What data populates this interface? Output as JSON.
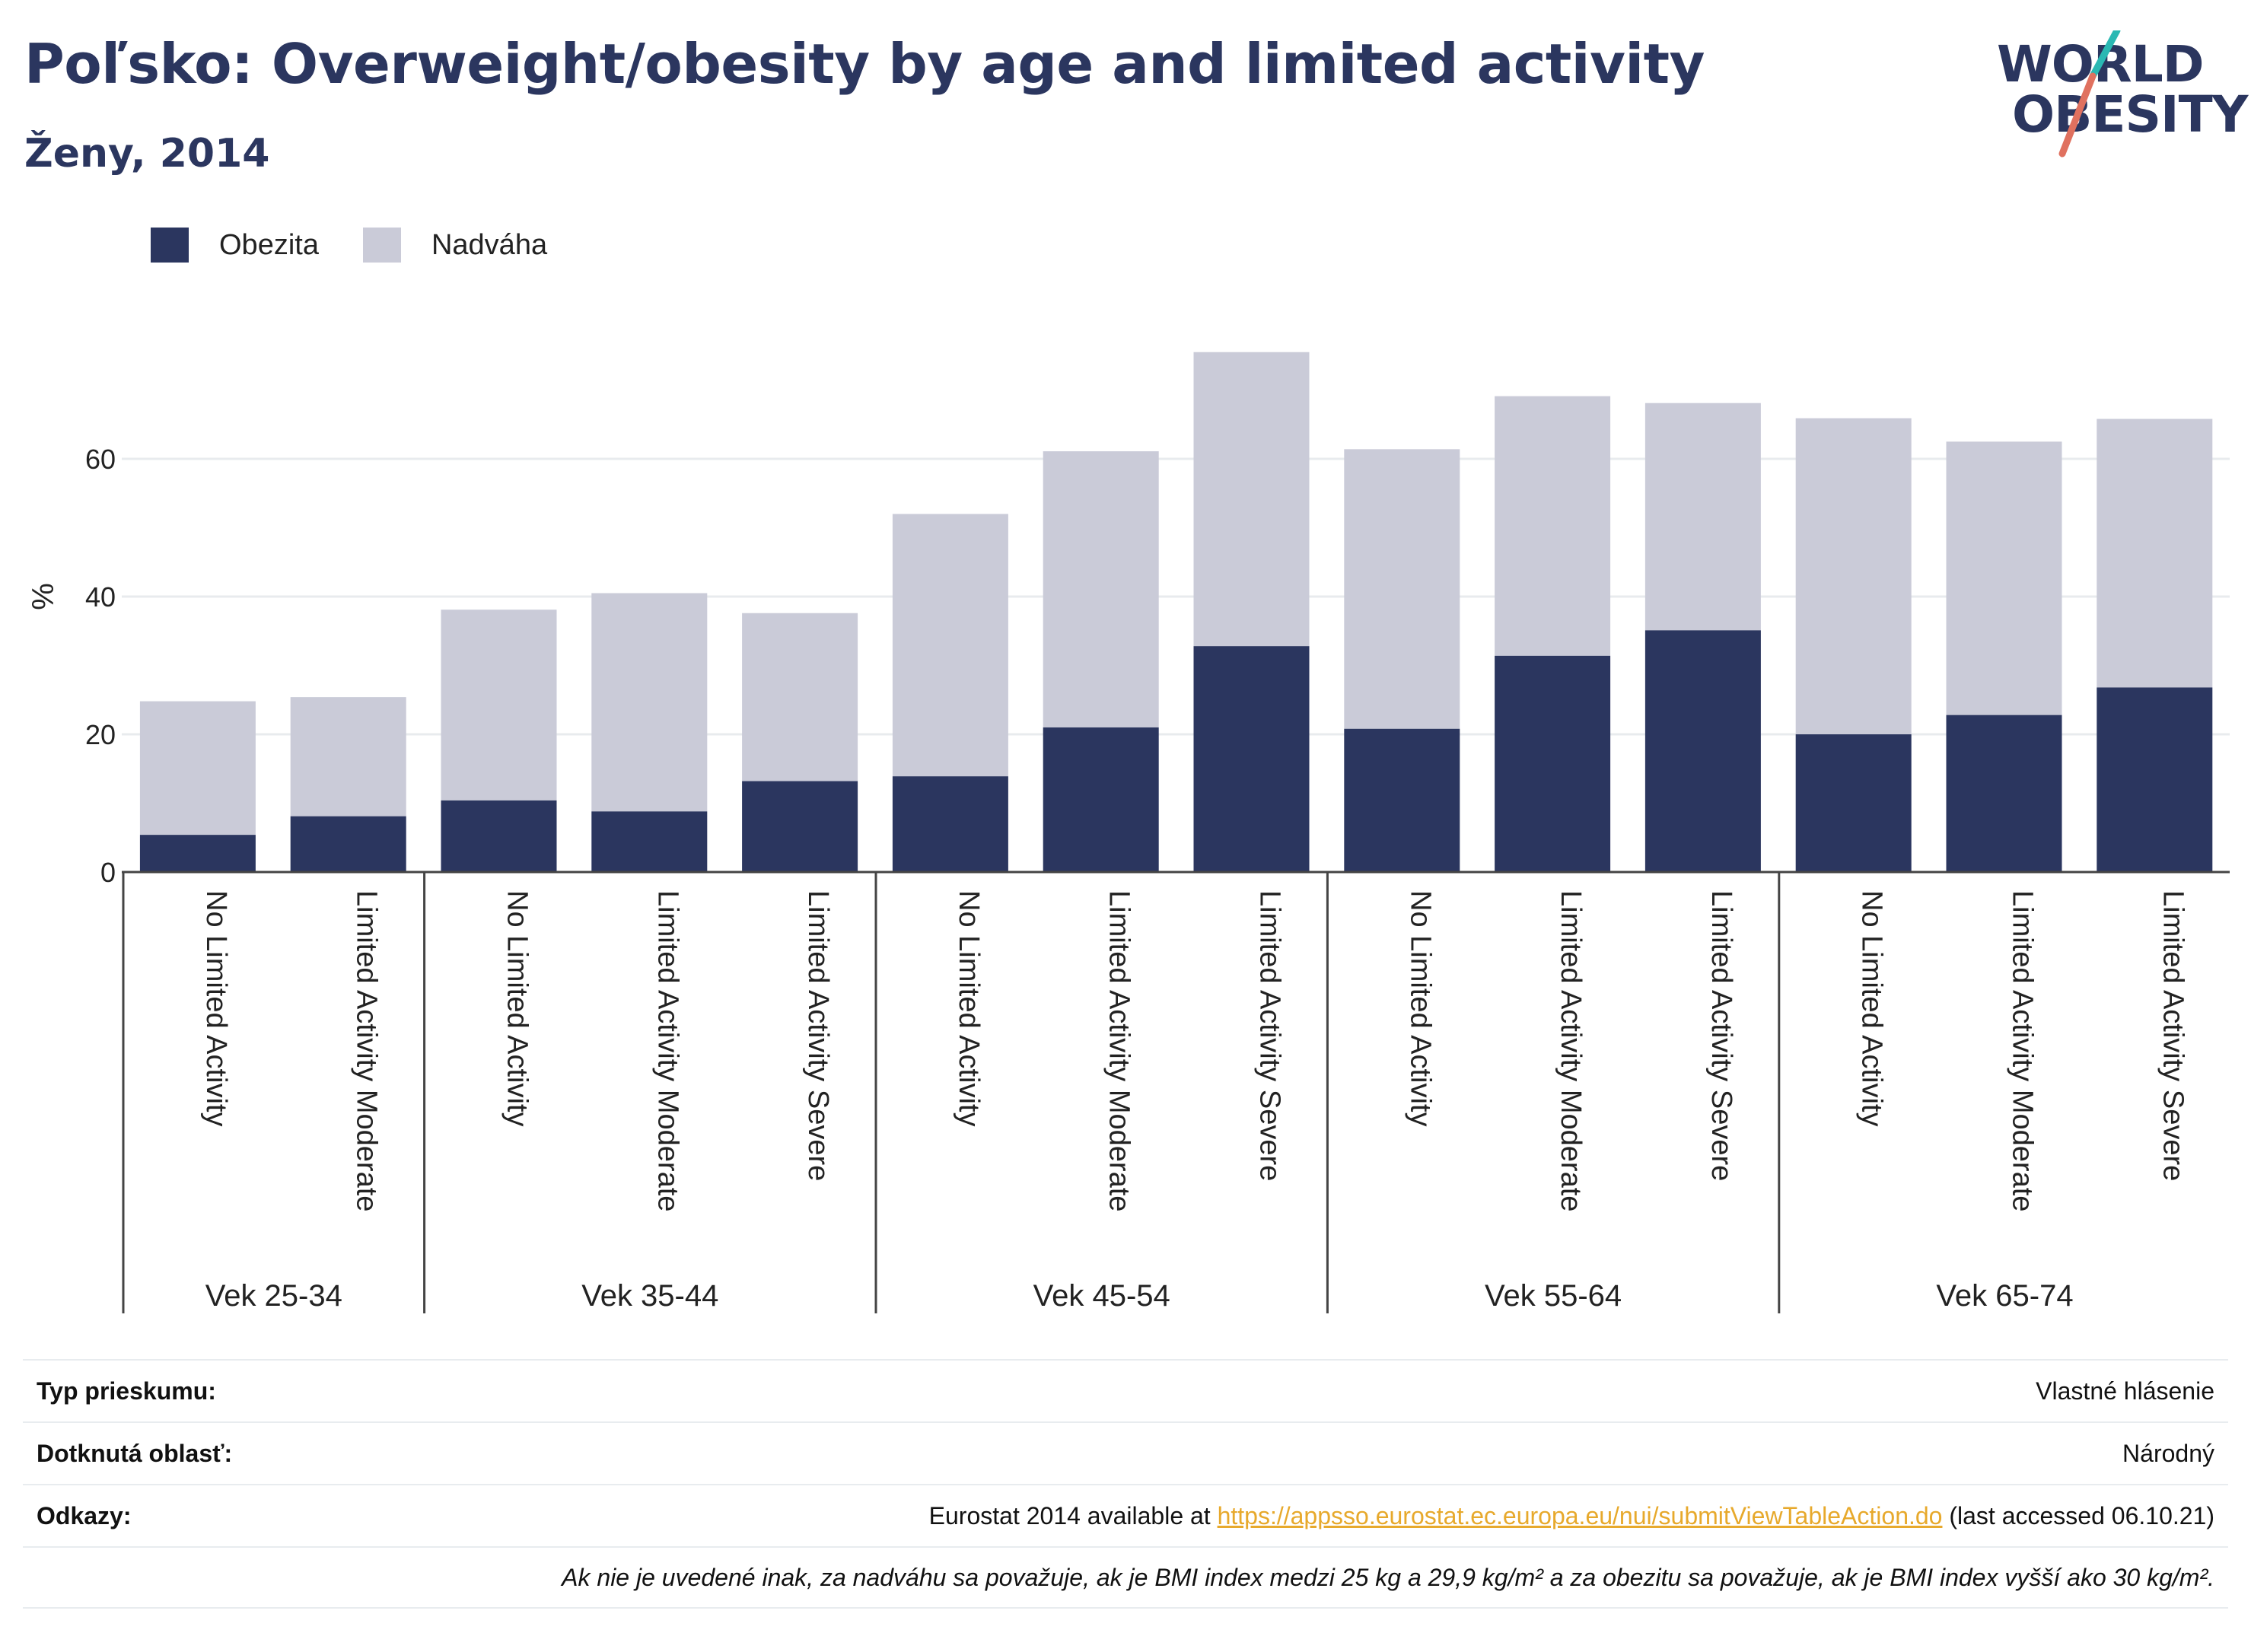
{
  "header": {
    "title": "Poľsko: Overweight/obesity by age and limited activity",
    "subtitle": "Ženy, 2014"
  },
  "logo": {
    "line1": "WORLD",
    "line2": "OBESITY"
  },
  "legend": [
    {
      "label": "Obezita",
      "color": "#2b365f"
    },
    {
      "label": "Nadváha",
      "color": "#cacbd8"
    }
  ],
  "chart_data": {
    "type": "bar",
    "stacked": true,
    "ylabel": "%",
    "ylim": [
      0,
      80
    ],
    "yticks": [
      0,
      20,
      40,
      60
    ],
    "grid": true,
    "legend_position": "top-left",
    "groups": [
      {
        "label": "Vek 25-34",
        "categories": [
          "No Limited Activity",
          "Limited Activity Moderate"
        ]
      },
      {
        "label": "Vek 35-44",
        "categories": [
          "No Limited Activity",
          "Limited Activity Moderate",
          "Limited Activity Severe"
        ]
      },
      {
        "label": "Vek 45-54",
        "categories": [
          "No Limited Activity",
          "Limited Activity Moderate",
          "Limited Activity Severe"
        ]
      },
      {
        "label": "Vek 55-64",
        "categories": [
          "No Limited Activity",
          "Limited Activity Moderate",
          "Limited Activity Severe"
        ]
      },
      {
        "label": "Vek 65-74",
        "categories": [
          "No Limited Activity",
          "Limited Activity Moderate",
          "Limited Activity Severe"
        ]
      }
    ],
    "series": [
      {
        "name": "Obezita",
        "color": "#2b365f",
        "values": [
          5.4,
          8.1,
          10.4,
          8.8,
          13.2,
          13.9,
          21.0,
          32.8,
          20.8,
          31.4,
          35.1,
          20.0,
          22.8,
          26.8
        ]
      },
      {
        "name": "Nadváha",
        "color": "#cacbd8",
        "values": [
          19.4,
          17.3,
          27.7,
          31.7,
          24.4,
          38.1,
          40.1,
          42.7,
          40.6,
          37.7,
          33.0,
          45.9,
          39.7,
          39.0
        ]
      }
    ]
  },
  "meta": {
    "survey_label": "Typ prieskumu:",
    "survey_value": "Vlastné hlásenie",
    "area_label": "Dotknutá oblasť:",
    "area_value": "Národný",
    "refs_label": "Odkazy:",
    "refs_prefix": "Eurostat 2014 available at ",
    "refs_link": "https://appsso.eurostat.ec.europa.eu/nui/submitViewTableAction.do",
    "refs_suffix": " (last accessed 06.10.21)",
    "note": "Ak nie je uvedené inak, za nadváhu sa považuje, ak je BMI index medzi 25 kg a 29,9 kg/m² a za obezitu sa považuje, ak je BMI index vyšší ako 30 kg/m²."
  }
}
